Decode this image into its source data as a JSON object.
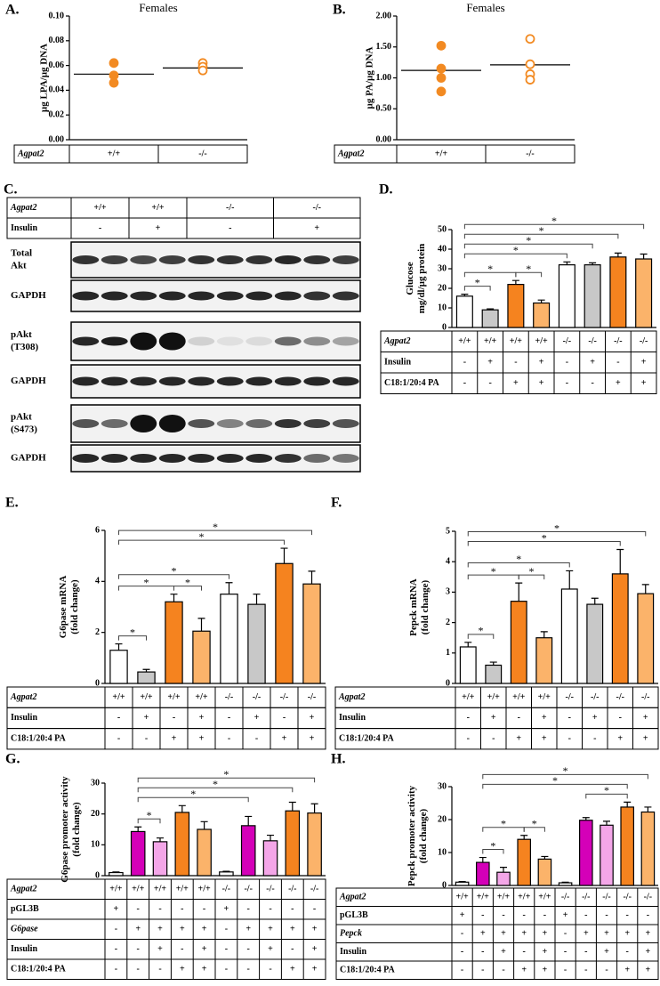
{
  "chart_data": [
    {
      "type": "strip",
      "panel": "A.",
      "title": "Females",
      "ylabel": [
        "µg LPA/µg DNA"
      ],
      "ylim": [
        0,
        0.1
      ],
      "yticks": [
        {
          "value": 0,
          "label": "0.00"
        },
        {
          "value": 0.02,
          "label": "0.02"
        },
        {
          "value": 0.04,
          "label": "0.04"
        },
        {
          "value": 0.06,
          "label": "0.06"
        },
        {
          "value": 0.08,
          "label": "0.08"
        },
        {
          "value": 0.1,
          "label": "0.10"
        }
      ],
      "color": "#f28a22",
      "groups": [
        {
          "values": [
            0.062,
            0.052,
            0.046
          ],
          "mean": 0.053,
          "filled": true
        },
        {
          "values": [
            0.062,
            0.059,
            0.056
          ],
          "mean": 0.058,
          "filled": false
        }
      ],
      "table": {
        "rows": [
          {
            "label": "Agpat2",
            "italic": true,
            "cells": [
              "+/+",
              "-/-"
            ]
          }
        ]
      }
    },
    {
      "type": "strip",
      "panel": "B.",
      "title": "Females",
      "ylabel": [
        "µg PA/µg DNA"
      ],
      "ylim": [
        0,
        2
      ],
      "yticks": [
        {
          "value": 0,
          "label": "0.00"
        },
        {
          "value": 0.5,
          "label": "0.50"
        },
        {
          "value": 1,
          "label": "1.00"
        },
        {
          "value": 1.5,
          "label": "1.50"
        },
        {
          "value": 2,
          "label": "2.00"
        }
      ],
      "color": "#f28a22",
      "groups": [
        {
          "values": [
            1.52,
            1.15,
            1.0,
            0.78
          ],
          "mean": 1.12,
          "filled": true
        },
        {
          "values": [
            1.63,
            1.22,
            1.06,
            0.97
          ],
          "mean": 1.21,
          "filled": false
        }
      ],
      "table": {
        "rows": [
          {
            "label": "Agpat2",
            "italic": true,
            "cells": [
              "+/+",
              "-/-"
            ]
          }
        ]
      }
    },
    {
      "type": "bar",
      "panel": "D.",
      "ylabel": [
        "Glucose",
        "mg/dl/µg protein"
      ],
      "ylim": [
        0,
        50
      ],
      "yticks": [
        0,
        10,
        20,
        30,
        40,
        50
      ],
      "values": [
        16,
        9,
        22,
        12.5,
        32,
        32,
        36,
        35
      ],
      "errors": [
        1,
        0.5,
        2,
        1.5,
        1.5,
        1,
        2,
        2.5
      ],
      "colors": [
        "#ffffff",
        "#c8c8c8",
        "#f5831f",
        "#fbb36a",
        "#ffffff",
        "#c8c8c8",
        "#f5831f",
        "#fbb36a"
      ],
      "significance": [
        {
          "from": 0,
          "to": 1,
          "label": "*"
        },
        {
          "from": 2,
          "to": 3,
          "label": "*"
        },
        {
          "from": 0,
          "to": 2,
          "label": "*"
        },
        {
          "from": 0,
          "to": 4,
          "label": "*"
        },
        {
          "from": 0,
          "to": 5,
          "label": "*"
        },
        {
          "from": 0,
          "to": 6,
          "label": "*"
        },
        {
          "from": 0,
          "to": 7,
          "label": "*"
        }
      ],
      "table": {
        "rows": [
          {
            "label": "Agpat2",
            "italic": true,
            "cells": [
              "+/+",
              "+/+",
              "+/+",
              "+/+",
              "-/-",
              "-/-",
              "-/-",
              "-/-"
            ]
          },
          {
            "label": "Insulin",
            "cells": [
              "-",
              "+",
              "-",
              "+",
              "-",
              "+",
              "-",
              "+"
            ]
          },
          {
            "label": "C18:1/20:4 PA",
            "cells": [
              "-",
              "-",
              "+",
              "+",
              "-",
              "-",
              "+",
              "+"
            ]
          }
        ]
      }
    },
    {
      "type": "bar",
      "panel": "E.",
      "ylabel": [
        "G6pase mRNA",
        "(fold change)"
      ],
      "ylim": [
        0,
        6
      ],
      "yticks": [
        0,
        2,
        4,
        6
      ],
      "values": [
        1.3,
        0.45,
        3.2,
        2.05,
        3.5,
        3.1,
        4.7,
        3.9
      ],
      "errors": [
        0.25,
        0.1,
        0.3,
        0.5,
        0.45,
        0.4,
        0.6,
        0.5
      ],
      "colors": [
        "#ffffff",
        "#c8c8c8",
        "#f5831f",
        "#fbb36a",
        "#ffffff",
        "#c8c8c8",
        "#f5831f",
        "#fbb36a"
      ],
      "significance": [
        {
          "from": 0,
          "to": 1,
          "label": "*"
        },
        {
          "from": 2,
          "to": 3,
          "label": "*"
        },
        {
          "from": 0,
          "to": 2,
          "label": "*"
        },
        {
          "from": 0,
          "to": 4,
          "label": "*"
        },
        {
          "from": 0,
          "to": 6,
          "label": "*"
        },
        {
          "from": 0,
          "to": 7,
          "label": "*"
        }
      ],
      "table": {
        "rows": [
          {
            "label": "Agpat2",
            "italic": true,
            "cells": [
              "+/+",
              "+/+",
              "+/+",
              "+/+",
              "-/-",
              "-/-",
              "-/-",
              "-/-"
            ]
          },
          {
            "label": "Insulin",
            "cells": [
              "-",
              "+",
              "-",
              "+",
              "-",
              "+",
              "-",
              "+"
            ]
          },
          {
            "label": "C18:1/20:4 PA",
            "cells": [
              "-",
              "-",
              "+",
              "+",
              "-",
              "-",
              "+",
              "+"
            ]
          }
        ]
      }
    },
    {
      "type": "bar",
      "panel": "F.",
      "ylabel": [
        "Pepck mRNA",
        "(fold change)"
      ],
      "ylim": [
        0,
        5
      ],
      "yticks": [
        0,
        1,
        2,
        3,
        4,
        5
      ],
      "values": [
        1.2,
        0.6,
        2.7,
        1.5,
        3.1,
        2.6,
        3.6,
        2.95
      ],
      "errors": [
        0.15,
        0.1,
        0.6,
        0.2,
        0.6,
        0.2,
        0.8,
        0.3
      ],
      "colors": [
        "#ffffff",
        "#c8c8c8",
        "#f5831f",
        "#fbb36a",
        "#ffffff",
        "#c8c8c8",
        "#f5831f",
        "#fbb36a"
      ],
      "significance": [
        {
          "from": 0,
          "to": 1,
          "label": "*"
        },
        {
          "from": 2,
          "to": 3,
          "label": "*"
        },
        {
          "from": 0,
          "to": 2,
          "label": "*"
        },
        {
          "from": 0,
          "to": 4,
          "label": "*"
        },
        {
          "from": 0,
          "to": 6,
          "label": "*"
        },
        {
          "from": 0,
          "to": 7,
          "label": "*"
        }
      ],
      "table": {
        "rows": [
          {
            "label": "Agpat2",
            "italic": true,
            "cells": [
              "+/+",
              "+/+",
              "+/+",
              "+/+",
              "-/-",
              "-/-",
              "-/-",
              "-/-"
            ]
          },
          {
            "label": "Insulin",
            "cells": [
              "-",
              "+",
              "-",
              "+",
              "-",
              "+",
              "-",
              "+"
            ]
          },
          {
            "label": "C18:1/20:4 PA",
            "cells": [
              "-",
              "-",
              "+",
              "+",
              "-",
              "-",
              "+",
              "+"
            ]
          }
        ]
      }
    },
    {
      "type": "bar",
      "panel": "G.",
      "ylabel": [
        "G6pase promoter activity",
        "(fold change)"
      ],
      "ylim": [
        0,
        30
      ],
      "yticks": [
        0,
        10,
        20,
        30
      ],
      "values": [
        1,
        14.3,
        11,
        20.5,
        15,
        1.2,
        16.2,
        11.3,
        21,
        20.3
      ],
      "errors": [
        0.2,
        1.5,
        1.2,
        2.2,
        2.5,
        0.2,
        3,
        1.8,
        2.8,
        3
      ],
      "colors": [
        "#ffffff",
        "#d400b8",
        "#f4a6e8",
        "#f5831f",
        "#fbb36a",
        "#ffffff",
        "#d400b8",
        "#f4a6e8",
        "#f5831f",
        "#fbb36a"
      ],
      "significance": [
        {
          "from": 1,
          "to": 2,
          "label": "*"
        },
        {
          "from": 1,
          "to": 6,
          "label": "*"
        },
        {
          "from": 1,
          "to": 8,
          "label": "*"
        },
        {
          "from": 1,
          "to": 9,
          "label": "*"
        }
      ],
      "table": {
        "rows": [
          {
            "label": "Agpat2",
            "italic": true,
            "cells": [
              "+/+",
              "+/+",
              "+/+",
              "+/+",
              "+/+",
              "-/-",
              "-/-",
              "-/-",
              "-/-",
              "-/-"
            ]
          },
          {
            "label": "pGL3B",
            "cells": [
              "+",
              "-",
              "-",
              "-",
              "-",
              "+",
              "-",
              "-",
              "-",
              "-"
            ]
          },
          {
            "label": "G6pase",
            "italic": true,
            "cells": [
              "-",
              "+",
              "+",
              "+",
              "+",
              "-",
              "+",
              "+",
              "+",
              "+"
            ]
          },
          {
            "label": "Insulin",
            "cells": [
              "-",
              "-",
              "+",
              "-",
              "+",
              "-",
              "-",
              "+",
              "-",
              "+"
            ]
          },
          {
            "label": "C18:1/20:4 PA",
            "cells": [
              "-",
              "-",
              "-",
              "+",
              "+",
              "-",
              "-",
              "-",
              "+",
              "+"
            ]
          }
        ]
      }
    },
    {
      "type": "bar",
      "panel": "H.",
      "ylabel": [
        "Pepck promoter activity",
        "(fold change)"
      ],
      "ylim": [
        0,
        30
      ],
      "yticks": [
        0,
        10,
        20,
        30
      ],
      "values": [
        1,
        7,
        4,
        14,
        8,
        0.8,
        19.8,
        18.3,
        23.8,
        22.3
      ],
      "errors": [
        0.2,
        1.5,
        1.5,
        1.2,
        0.8,
        0.2,
        0.8,
        1.2,
        1.5,
        1.5
      ],
      "colors": [
        "#ffffff",
        "#d400b8",
        "#f4a6e8",
        "#f5831f",
        "#fbb36a",
        "#ffffff",
        "#d400b8",
        "#f4a6e8",
        "#f5831f",
        "#fbb36a"
      ],
      "significance": [
        {
          "from": 1,
          "to": 2,
          "label": "*"
        },
        {
          "from": 3,
          "to": 4,
          "label": "*"
        },
        {
          "from": 6,
          "to": 8,
          "label": "*"
        },
        {
          "from": 1,
          "to": 3,
          "label": "*"
        },
        {
          "from": 1,
          "to": 8,
          "label": "*"
        },
        {
          "from": 1,
          "to": 9,
          "label": "*"
        }
      ],
      "table": {
        "rows": [
          {
            "label": "Agpat2",
            "italic": true,
            "cells": [
              "+/+",
              "+/+",
              "+/+",
              "+/+",
              "+/+",
              "-/-",
              "-/-",
              "-/-",
              "-/-",
              "-/-"
            ]
          },
          {
            "label": "pGL3B",
            "cells": [
              "+",
              "-",
              "-",
              "-",
              "-",
              "+",
              "-",
              "-",
              "-",
              "-"
            ]
          },
          {
            "label": "Pepck",
            "italic": true,
            "cells": [
              "-",
              "+",
              "+",
              "+",
              "+",
              "-",
              "+",
              "+",
              "+",
              "+"
            ]
          },
          {
            "label": "Insulin",
            "cells": [
              "-",
              "-",
              "+",
              "-",
              "+",
              "-",
              "-",
              "+",
              "-",
              "+"
            ]
          },
          {
            "label": "C18:1/20:4 PA",
            "cells": [
              "-",
              "-",
              "-",
              "+",
              "+",
              "-",
              "-",
              "-",
              "+",
              "+"
            ]
          }
        ]
      }
    }
  ],
  "western_blot": {
    "panel": "C.",
    "header": {
      "rows": [
        {
          "label": "Agpat2",
          "italic": true,
          "cells": [
            "+/+",
            "+/+",
            "-/-",
            "-/-"
          ]
        },
        {
          "label": "Insulin",
          "cells": [
            "-",
            "+",
            "-",
            "+"
          ]
        }
      ]
    },
    "blots": [
      {
        "label": [
          "Total",
          "Akt"
        ]
      },
      {
        "label": [
          "GAPDH"
        ]
      },
      {
        "label": [
          "pAkt",
          "(T308)"
        ]
      },
      {
        "label": [
          "GAPDH"
        ]
      },
      {
        "label": [
          "pAkt",
          "(S473)"
        ]
      },
      {
        "label": [
          "GAPDH"
        ]
      }
    ]
  }
}
